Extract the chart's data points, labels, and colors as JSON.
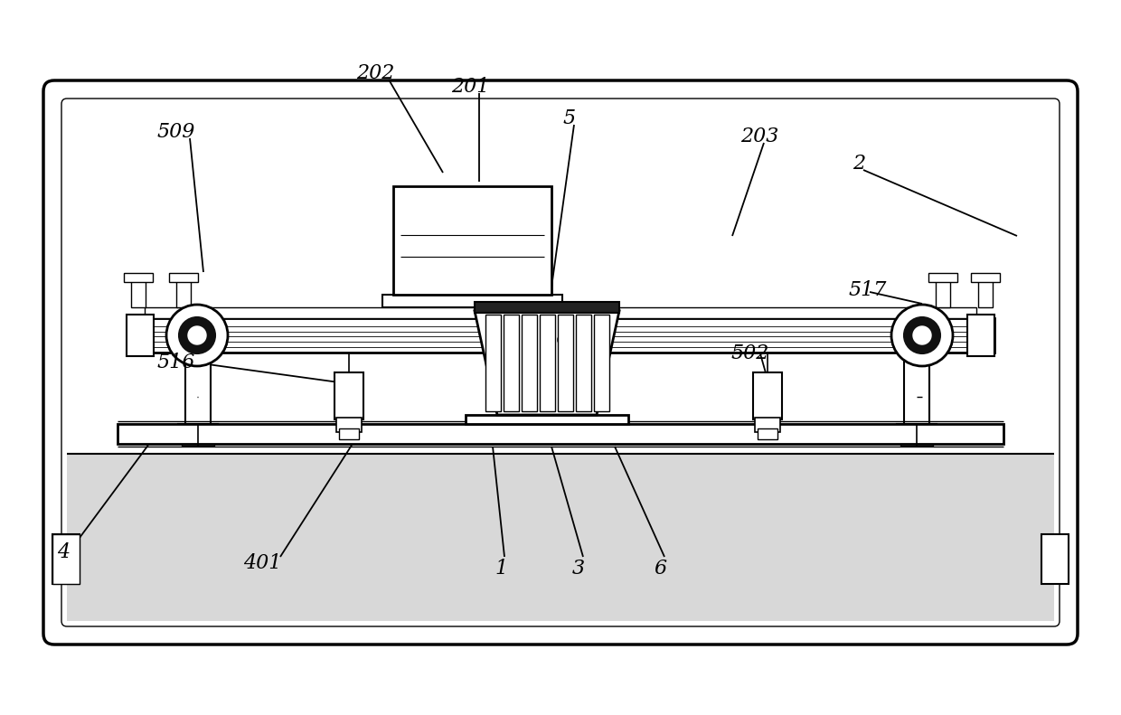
{
  "bg_color": "#ffffff",
  "lw_main": 1.8,
  "lw_thick": 2.5,
  "lw_thin": 0.8,
  "fig_width": 12.4,
  "fig_height": 7.91
}
